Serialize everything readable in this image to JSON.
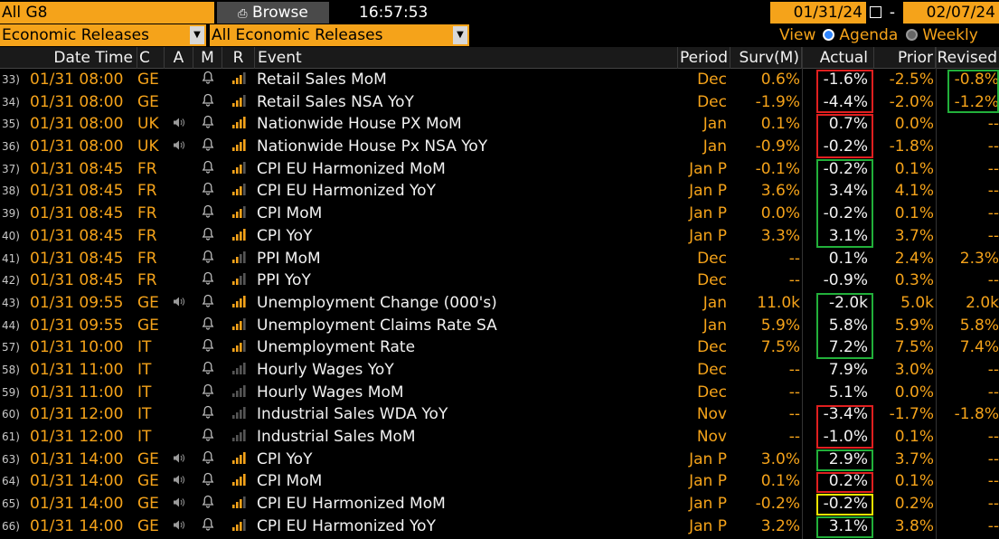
{
  "toolbar": {
    "group": "All G8",
    "browse_label": "Browse",
    "time": "16:57:53",
    "date_from": "01/31/24",
    "date_sep": "-",
    "date_to": "02/07/24"
  },
  "filters": {
    "category": "Economic Releases",
    "subcategory": "All Economic Releases",
    "view_label": "View",
    "agenda_label": "Agenda",
    "weekly_label": "Weekly"
  },
  "columns": [
    "Date Time",
    "C",
    "A",
    "M",
    "R",
    "Event",
    "Period",
    "Surv(M)",
    "Actual",
    "Prior",
    "Revised"
  ],
  "rows": [
    {
      "num": "33)",
      "dt": "01/31 08:00",
      "c": "GE",
      "audio": false,
      "event": "Retail Sales MoM",
      "period": "Dec",
      "surv": "0.6%",
      "actual": "-1.6%",
      "prior": "-2.5%",
      "revised": "-0.8%",
      "rel": 3,
      "actual_box": "red",
      "revised_box": "green"
    },
    {
      "num": "34)",
      "dt": "01/31 08:00",
      "c": "GE",
      "audio": false,
      "event": "Retail Sales NSA YoY",
      "period": "Dec",
      "surv": "-1.9%",
      "actual": "-4.4%",
      "prior": "-2.0%",
      "revised": "-1.2%",
      "rel": 3,
      "actual_box": "red",
      "revised_box": "green"
    },
    {
      "num": "35)",
      "dt": "01/31 08:00",
      "c": "UK",
      "audio": true,
      "event": "Nationwide House PX MoM",
      "period": "Jan",
      "surv": "0.1%",
      "actual": "0.7%",
      "prior": "0.0%",
      "revised": "--",
      "rel": 4,
      "actual_box": "red",
      "revised_box": ""
    },
    {
      "num": "36)",
      "dt": "01/31 08:00",
      "c": "UK",
      "audio": true,
      "event": "Nationwide House Px NSA YoY",
      "period": "Jan",
      "surv": "-0.9%",
      "actual": "-0.2%",
      "prior": "-1.8%",
      "revised": "--",
      "rel": 4,
      "actual_box": "red",
      "revised_box": ""
    },
    {
      "num": "37)",
      "dt": "01/31 08:45",
      "c": "FR",
      "audio": false,
      "event": "CPI EU Harmonized MoM",
      "period": "Jan P",
      "surv": "-0.1%",
      "actual": "-0.2%",
      "prior": "0.1%",
      "revised": "--",
      "rel": 3,
      "actual_box": "green",
      "revised_box": ""
    },
    {
      "num": "38)",
      "dt": "01/31 08:45",
      "c": "FR",
      "audio": false,
      "event": "CPI EU Harmonized YoY",
      "period": "Jan P",
      "surv": "3.6%",
      "actual": "3.4%",
      "prior": "4.1%",
      "revised": "--",
      "rel": 3,
      "actual_box": "green",
      "revised_box": ""
    },
    {
      "num": "39)",
      "dt": "01/31 08:45",
      "c": "FR",
      "audio": false,
      "event": "CPI MoM",
      "period": "Jan P",
      "surv": "0.0%",
      "actual": "-0.2%",
      "prior": "0.1%",
      "revised": "--",
      "rel": 3,
      "actual_box": "green",
      "revised_box": ""
    },
    {
      "num": "40)",
      "dt": "01/31 08:45",
      "c": "FR",
      "audio": false,
      "event": "CPI YoY",
      "period": "Jan P",
      "surv": "3.3%",
      "actual": "3.1%",
      "prior": "3.7%",
      "revised": "--",
      "rel": 4,
      "actual_box": "green",
      "revised_box": ""
    },
    {
      "num": "41)",
      "dt": "01/31 08:45",
      "c": "FR",
      "audio": false,
      "event": "PPI MoM",
      "period": "Dec",
      "surv": "--",
      "actual": "0.1%",
      "prior": "2.4%",
      "revised": "2.3%",
      "rel": 2,
      "actual_box": "",
      "revised_box": ""
    },
    {
      "num": "42)",
      "dt": "01/31 08:45",
      "c": "FR",
      "audio": false,
      "event": "PPI YoY",
      "period": "Dec",
      "surv": "--",
      "actual": "-0.9%",
      "prior": "0.3%",
      "revised": "--",
      "rel": 2,
      "actual_box": "",
      "revised_box": ""
    },
    {
      "num": "43)",
      "dt": "01/31 09:55",
      "c": "GE",
      "audio": true,
      "event": "Unemployment Change (000's)",
      "period": "Jan",
      "surv": "11.0k",
      "actual": "-2.0k",
      "prior": "5.0k",
      "revised": "2.0k",
      "rel": 4,
      "actual_box": "green",
      "revised_box": ""
    },
    {
      "num": "44)",
      "dt": "01/31 09:55",
      "c": "GE",
      "audio": false,
      "event": "Unemployment Claims Rate SA",
      "period": "Jan",
      "surv": "5.9%",
      "actual": "5.8%",
      "prior": "5.9%",
      "revised": "5.8%",
      "rel": 3,
      "actual_box": "green",
      "revised_box": ""
    },
    {
      "num": "57)",
      "dt": "01/31 10:00",
      "c": "IT",
      "audio": false,
      "event": "Unemployment Rate",
      "period": "Dec",
      "surv": "7.5%",
      "actual": "7.2%",
      "prior": "7.5%",
      "revised": "7.4%",
      "rel": 3,
      "actual_box": "green",
      "revised_box": ""
    },
    {
      "num": "58)",
      "dt": "01/31 11:00",
      "c": "IT",
      "audio": false,
      "event": "Hourly Wages YoY",
      "period": "Dec",
      "surv": "--",
      "actual": "7.9%",
      "prior": "3.0%",
      "revised": "--",
      "rel": 0,
      "actual_box": "",
      "revised_box": ""
    },
    {
      "num": "59)",
      "dt": "01/31 11:00",
      "c": "IT",
      "audio": false,
      "event": "Hourly Wages MoM",
      "period": "Dec",
      "surv": "--",
      "actual": "5.1%",
      "prior": "0.0%",
      "revised": "--",
      "rel": 0,
      "actual_box": "",
      "revised_box": ""
    },
    {
      "num": "60)",
      "dt": "01/31 12:00",
      "c": "IT",
      "audio": false,
      "event": "Industrial Sales WDA YoY",
      "period": "Nov",
      "surv": "--",
      "actual": "-3.4%",
      "prior": "-1.7%",
      "revised": "-1.8%",
      "rel": 0,
      "actual_box": "red",
      "revised_box": ""
    },
    {
      "num": "61)",
      "dt": "01/31 12:00",
      "c": "IT",
      "audio": false,
      "event": "Industrial Sales MoM",
      "period": "Nov",
      "surv": "--",
      "actual": "-1.0%",
      "prior": "0.1%",
      "revised": "--",
      "rel": 0,
      "actual_box": "red",
      "revised_box": ""
    },
    {
      "num": "63)",
      "dt": "01/31 14:00",
      "c": "GE",
      "audio": true,
      "event": "CPI YoY",
      "period": "Jan P",
      "surv": "3.0%",
      "actual": "2.9%",
      "prior": "3.7%",
      "revised": "--",
      "rel": 4,
      "actual_box": "green",
      "revised_box": ""
    },
    {
      "num": "64)",
      "dt": "01/31 14:00",
      "c": "GE",
      "audio": true,
      "event": "CPI MoM",
      "period": "Jan P",
      "surv": "0.1%",
      "actual": "0.2%",
      "prior": "0.1%",
      "revised": "--",
      "rel": 4,
      "actual_box": "red",
      "revised_box": ""
    },
    {
      "num": "65)",
      "dt": "01/31 14:00",
      "c": "GE",
      "audio": true,
      "event": "CPI EU Harmonized MoM",
      "period": "Jan P",
      "surv": "-0.2%",
      "actual": "-0.2%",
      "prior": "0.2%",
      "revised": "--",
      "rel": 3,
      "actual_box": "yellow",
      "revised_box": ""
    },
    {
      "num": "66)",
      "dt": "01/31 14:00",
      "c": "GE",
      "audio": true,
      "event": "CPI EU Harmonized YoY",
      "period": "Jan P",
      "surv": "3.2%",
      "actual": "3.1%",
      "prior": "3.8%",
      "revised": "--",
      "rel": 3,
      "actual_box": "green",
      "revised_box": ""
    }
  ],
  "colors": {
    "orange": "#f5a31a",
    "red_box": "#e01f1f",
    "green_box": "#22b03a",
    "yellow_box": "#f2e600",
    "header_bg": "#1a1a1a"
  }
}
